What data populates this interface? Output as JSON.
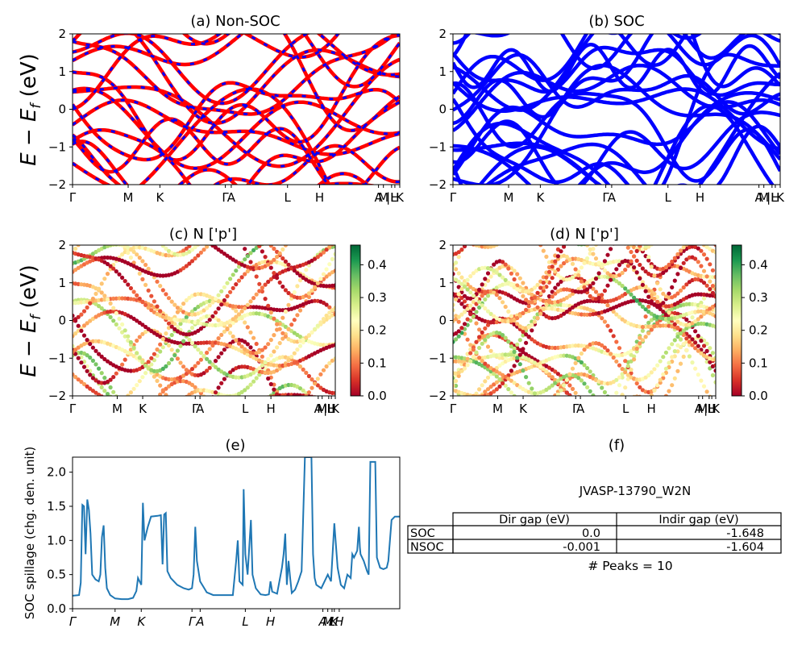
{
  "colors": {
    "nonsoc_line": "#ff0000",
    "soc_line": "#0000ff",
    "spillage_line": "#1f77b4",
    "colormap": "RdYlGn"
  },
  "ylabel_top": "E − E_f (eV)",
  "panels": {
    "a": {
      "title": "(a) Non-SOC"
    },
    "b": {
      "title": "(b) SOC"
    },
    "c": {
      "title": "(c)  N ['p']"
    },
    "d": {
      "title": "(d) N ['p']"
    },
    "e": {
      "title": "(e)",
      "ylabel": "SOC spillage (chg. den. unit)"
    },
    "f": {
      "title": "(f)"
    }
  },
  "colorbar": {
    "min": 0.0,
    "max": 0.46,
    "ticks": [
      "0.0",
      "0.1",
      "0.2",
      "0.3",
      "0.4"
    ]
  },
  "kpath_labels": [
    "Γ",
    "M",
    "K",
    "Γ",
    "A",
    "L",
    "H",
    "A",
    "M",
    "|L",
    "H",
    "K"
  ],
  "table": {
    "caption": "JVASP-13790_W2N",
    "headers": [
      "Dir gap (eV)",
      "Indir gap (eV)"
    ],
    "rows": [
      {
        "label": "SOC",
        "dir": "0.0",
        "indir": "-1.648"
      },
      {
        "label": "NSOC",
        "dir": "-0.001",
        "indir": "-1.604"
      }
    ],
    "peaks_text": "# Peaks = 10"
  },
  "chart_data": [
    {
      "type": "line",
      "title": "(a) Non-SOC",
      "ylabel": "E − E_f (eV)",
      "ylim": [
        -2,
        2
      ],
      "yticks": [
        -2,
        -1,
        0,
        1,
        2
      ],
      "xticks": [
        {
          "x": 0.0,
          "label": "Γ"
        },
        {
          "x": 0.17,
          "label": "M"
        },
        {
          "x": 0.267,
          "label": "K"
        },
        {
          "x": 0.467,
          "label": "Γ"
        },
        {
          "x": 0.485,
          "label": "A"
        },
        {
          "x": 0.657,
          "label": "L"
        },
        {
          "x": 0.755,
          "label": "H"
        },
        {
          "x": 0.935,
          "label": "A"
        },
        {
          "x": 0.95,
          "label": "M"
        },
        {
          "x": 0.975,
          "label": "|L"
        },
        {
          "x": 0.985,
          "label": "H"
        },
        {
          "x": 1.0,
          "label": "K"
        }
      ],
      "series": [
        {
          "name": "",
          "values": []
        }
      ]
    },
    {
      "type": "line",
      "title": "(b) SOC",
      "ylim": [
        -2,
        2
      ],
      "yticks": [
        -2,
        -1,
        0,
        1,
        2
      ],
      "series": [
        {
          "name": "",
          "values": []
        }
      ]
    },
    {
      "type": "scatter",
      "title": "(c)  N ['p']",
      "ylabel": "E − E_f (eV)",
      "ylim": [
        -2,
        2
      ],
      "colorbar": [
        0.0,
        0.46
      ]
    },
    {
      "type": "scatter",
      "title": "(d) N ['p']",
      "ylim": [
        -2,
        2
      ],
      "colorbar": [
        0.0,
        0.46
      ]
    },
    {
      "type": "line",
      "title": "(e)",
      "ylabel": "SOC spillage (chg. den. unit)",
      "ylim": [
        0,
        2.22
      ],
      "yticks": [
        0.0,
        0.5,
        1.0,
        1.5,
        2.0
      ],
      "xticks": [
        {
          "x": 0.0,
          "label": "Γ"
        },
        {
          "x": 0.13,
          "label": "M"
        },
        {
          "x": 0.21,
          "label": "K"
        },
        {
          "x": 0.365,
          "label": "Γ"
        },
        {
          "x": 0.39,
          "label": "A"
        },
        {
          "x": 0.528,
          "label": "L"
        },
        {
          "x": 0.605,
          "label": "H"
        },
        {
          "x": 0.765,
          "label": "A"
        },
        {
          "x": 0.78,
          "label": "M"
        },
        {
          "x": 0.793,
          "label": "L"
        },
        {
          "x": 0.8,
          "label": "K"
        },
        {
          "x": 0.815,
          "label": "H"
        }
      ],
      "series": [
        {
          "name": "",
          "points": [
            [
              0.0,
              0.19
            ],
            [
              0.02,
              0.2
            ],
            [
              0.025,
              0.38
            ],
            [
              0.03,
              1.52
            ],
            [
              0.035,
              1.5
            ],
            [
              0.04,
              0.8
            ],
            [
              0.045,
              1.6
            ],
            [
              0.05,
              1.45
            ],
            [
              0.055,
              1.1
            ],
            [
              0.06,
              0.5
            ],
            [
              0.07,
              0.43
            ],
            [
              0.08,
              0.4
            ],
            [
              0.085,
              0.5
            ],
            [
              0.09,
              1.05
            ],
            [
              0.095,
              1.22
            ],
            [
              0.1,
              0.6
            ],
            [
              0.105,
              0.3
            ],
            [
              0.115,
              0.2
            ],
            [
              0.13,
              0.15
            ],
            [
              0.15,
              0.14
            ],
            [
              0.17,
              0.14
            ],
            [
              0.185,
              0.16
            ],
            [
              0.195,
              0.26
            ],
            [
              0.2,
              0.45
            ],
            [
              0.205,
              0.4
            ],
            [
              0.21,
              0.35
            ],
            [
              0.215,
              1.55
            ],
            [
              0.22,
              1.0
            ],
            [
              0.23,
              1.2
            ],
            [
              0.24,
              1.35
            ],
            [
              0.26,
              1.36
            ],
            [
              0.27,
              1.37
            ],
            [
              0.275,
              0.65
            ],
            [
              0.28,
              1.38
            ],
            [
              0.285,
              1.4
            ],
            [
              0.29,
              0.55
            ],
            [
              0.3,
              0.45
            ],
            [
              0.32,
              0.35
            ],
            [
              0.34,
              0.3
            ],
            [
              0.355,
              0.28
            ],
            [
              0.365,
              0.3
            ],
            [
              0.37,
              0.5
            ],
            [
              0.375,
              1.2
            ],
            [
              0.38,
              0.7
            ],
            [
              0.39,
              0.4
            ],
            [
              0.4,
              0.32
            ],
            [
              0.41,
              0.24
            ],
            [
              0.43,
              0.2
            ],
            [
              0.46,
              0.2
            ],
            [
              0.48,
              0.2
            ],
            [
              0.49,
              0.2
            ],
            [
              0.5,
              0.7
            ],
            [
              0.505,
              1.0
            ],
            [
              0.51,
              0.4
            ],
            [
              0.52,
              0.35
            ],
            [
              0.523,
              1.75
            ],
            [
              0.528,
              0.8
            ],
            [
              0.535,
              0.5
            ],
            [
              0.545,
              1.3
            ],
            [
              0.55,
              0.5
            ],
            [
              0.56,
              0.3
            ],
            [
              0.575,
              0.21
            ],
            [
              0.59,
              0.2
            ],
            [
              0.6,
              0.21
            ],
            [
              0.605,
              0.4
            ],
            [
              0.61,
              0.25
            ],
            [
              0.625,
              0.22
            ],
            [
              0.64,
              0.6
            ],
            [
              0.645,
              0.8
            ],
            [
              0.65,
              1.1
            ],
            [
              0.655,
              0.35
            ],
            [
              0.66,
              0.7
            ],
            [
              0.665,
              0.45
            ],
            [
              0.67,
              0.23
            ],
            [
              0.68,
              0.28
            ],
            [
              0.69,
              0.4
            ],
            [
              0.7,
              0.55
            ],
            [
              0.71,
              2.22
            ],
            [
              0.72,
              2.22
            ],
            [
              0.73,
              2.22
            ],
            [
              0.735,
              0.8
            ],
            [
              0.74,
              0.45
            ],
            [
              0.745,
              0.35
            ],
            [
              0.76,
              0.3
            ],
            [
              0.78,
              0.5
            ],
            [
              0.79,
              0.4
            ],
            [
              0.8,
              1.25
            ],
            [
              0.81,
              0.6
            ],
            [
              0.82,
              0.35
            ],
            [
              0.83,
              0.3
            ],
            [
              0.84,
              0.5
            ],
            [
              0.85,
              0.45
            ],
            [
              0.855,
              0.8
            ],
            [
              0.86,
              0.75
            ],
            [
              0.87,
              0.85
            ],
            [
              0.875,
              1.2
            ],
            [
              0.878,
              0.9
            ],
            [
              0.88,
              0.8
            ],
            [
              0.89,
              0.7
            ],
            [
              0.9,
              0.55
            ],
            [
              0.905,
              0.5
            ],
            [
              0.91,
              2.15
            ],
            [
              0.925,
              2.15
            ],
            [
              0.93,
              0.75
            ],
            [
              0.94,
              0.6
            ],
            [
              0.95,
              0.58
            ],
            [
              0.96,
              0.6
            ],
            [
              0.965,
              0.7
            ],
            [
              0.975,
              1.3
            ],
            [
              0.985,
              1.35
            ],
            [
              1.0,
              1.35
            ]
          ]
        }
      ]
    }
  ]
}
